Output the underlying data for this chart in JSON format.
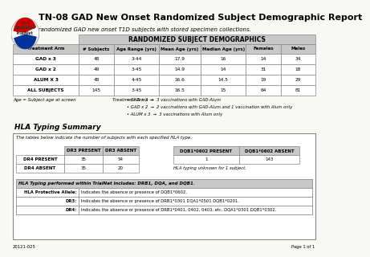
{
  "title": "TN-08 GAD New Onset Randomized Subject Demographic Report",
  "subtitle": "Includes randomized GAD new onset T1D subjects with stored specimen collections.",
  "table1_header": "RANDOMIZED SUBJECT DEMOGRAPHICS",
  "table1_cols": [
    "Treatment Arm",
    "# Subjects",
    "Age Range (yrs)",
    "Mean Age (yrs)",
    "Median Age (yrs)",
    "Females",
    "Males"
  ],
  "table1_rows": [
    [
      "GAD x 3",
      "48",
      "3-44",
      "17.9",
      "16",
      "14",
      "34"
    ],
    [
      "GAD x 2",
      "49",
      "3-45",
      "14.9",
      "14",
      "31",
      "18"
    ],
    [
      "ALUM X 3",
      "48",
      "4-45",
      "16.6",
      "14.5",
      "19",
      "29"
    ],
    [
      "ALL SUBJECTS",
      "145",
      "3-45",
      "16.5",
      "15",
      "64",
      "81"
    ]
  ],
  "footnote_left": "Age = Subject age at screen",
  "footnote_right_label": "Treatment Arms →",
  "footnote_bullets": [
    "• GAD x 3  →  3 vaccinations with GAD-Alum",
    "• GAD x 2  →  2 vaccinations with GAD-Alum and 1 vaccination with Alum only",
    "• ALUM x 3  →  3 vaccinations with Alum only"
  ],
  "hla_title": "HLA Typing Summary",
  "hla_subtitle": "The tables below indicate the number of subjects with each specified HLA type.",
  "hla_table1_cols": [
    "",
    "DR3 PRESENT",
    "DR3 ABSENT"
  ],
  "hla_table1_rows": [
    [
      "DR4 PRESENT",
      "35",
      "54"
    ],
    [
      "DR4 ABSENT",
      "35",
      "20"
    ]
  ],
  "hla_table2_cols": [
    "DQB1*0602 PRESENT",
    "DQB1*0602 ABSENT"
  ],
  "hla_table2_rows": [
    [
      "1",
      "143"
    ]
  ],
  "hla_note": "HLA typing unknown for 1 subject.",
  "hla_box_title": "HLA Typing performed within TrialNet includes: DRB1, DQA, and DQB1.",
  "hla_box_rows": [
    [
      "HLA Protective Allele:",
      "Indicates the absence or presence of DQB1*0602."
    ],
    [
      "DR3:",
      "Indicates the absence or presence of DRB1*0301 DQA1*0501 DQB1*0201."
    ],
    [
      "DR4:",
      "Indicates the absence or presence of DRB1*0401, 0402, 0403, etc. DQA1*0301 DQB1*0302."
    ]
  ],
  "footer_left": "20121-025",
  "footer_right": "Page 1 of 1",
  "bg_color": "#f8f8f4",
  "table_header_bg": "#c8c8c8",
  "border_color": "#888888",
  "hla_header_bg": "#c8c8c8"
}
